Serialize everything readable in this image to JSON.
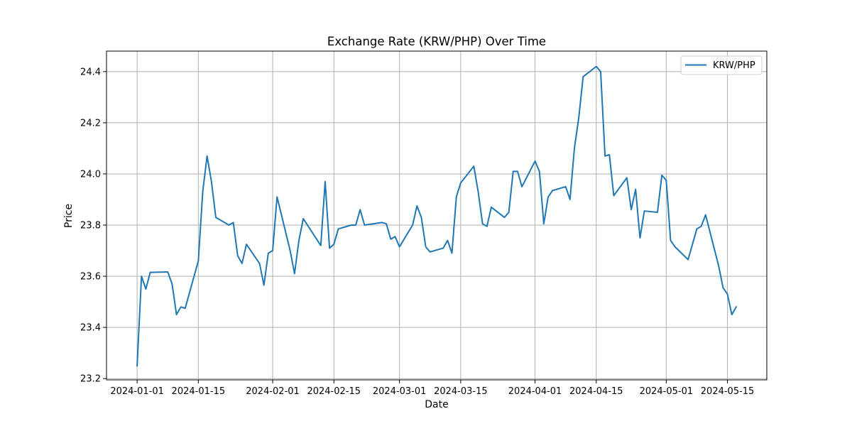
{
  "chart_data": {
    "type": "line",
    "title": "Exchange Rate (KRW/PHP) Over Time",
    "xlabel": "Date",
    "ylabel": "Price",
    "ylim": [
      23.195,
      24.48
    ],
    "xlim": [
      "2023-12-25",
      "2024-05-24"
    ],
    "grid": true,
    "legend_position": "top-right",
    "x_ticks": [
      "2024-01-01",
      "2024-01-15",
      "2024-02-01",
      "2024-02-15",
      "2024-03-01",
      "2024-03-15",
      "2024-04-01",
      "2024-04-15",
      "2024-05-01",
      "2024-05-15"
    ],
    "y_ticks": [
      23.2,
      23.4,
      23.6,
      23.8,
      24.0,
      24.2,
      24.4
    ],
    "y_tick_labels": [
      "23.2",
      "23.4",
      "23.6",
      "23.8",
      "24.0",
      "24.2",
      "24.4"
    ],
    "series": [
      {
        "name": "KRW/PHP",
        "color": "#1f77b4",
        "x": [
          "2024-01-01",
          "2024-01-02",
          "2024-01-03",
          "2024-01-04",
          "2024-01-08",
          "2024-01-09",
          "2024-01-10",
          "2024-01-11",
          "2024-01-12",
          "2024-01-15",
          "2024-01-16",
          "2024-01-17",
          "2024-01-18",
          "2024-01-19",
          "2024-01-22",
          "2024-01-23",
          "2024-01-24",
          "2024-01-25",
          "2024-01-26",
          "2024-01-29",
          "2024-01-30",
          "2024-01-31",
          "2024-02-01",
          "2024-02-02",
          "2024-02-05",
          "2024-02-06",
          "2024-02-07",
          "2024-02-08",
          "2024-02-12",
          "2024-02-13",
          "2024-02-14",
          "2024-02-15",
          "2024-02-16",
          "2024-02-19",
          "2024-02-20",
          "2024-02-21",
          "2024-02-22",
          "2024-02-26",
          "2024-02-27",
          "2024-02-28",
          "2024-02-29",
          "2024-03-01",
          "2024-03-04",
          "2024-03-05",
          "2024-03-06",
          "2024-03-07",
          "2024-03-08",
          "2024-03-11",
          "2024-03-12",
          "2024-03-13",
          "2024-03-14",
          "2024-03-15",
          "2024-03-18",
          "2024-03-19",
          "2024-03-20",
          "2024-03-21",
          "2024-03-22",
          "2024-03-25",
          "2024-03-26",
          "2024-03-27",
          "2024-03-28",
          "2024-03-29",
          "2024-04-01",
          "2024-04-02",
          "2024-04-03",
          "2024-04-04",
          "2024-04-05",
          "2024-04-08",
          "2024-04-09",
          "2024-04-10",
          "2024-04-11",
          "2024-04-12",
          "2024-04-15",
          "2024-04-16",
          "2024-04-17",
          "2024-04-18",
          "2024-04-19",
          "2024-04-22",
          "2024-04-23",
          "2024-04-24",
          "2024-04-25",
          "2024-04-26",
          "2024-04-29",
          "2024-04-30",
          "2024-05-01",
          "2024-05-02",
          "2024-05-03",
          "2024-05-06",
          "2024-05-07",
          "2024-05-08",
          "2024-05-09",
          "2024-05-10",
          "2024-05-13",
          "2024-05-14",
          "2024-05-15",
          "2024-05-16",
          "2024-05-17"
        ],
        "y": [
          23.25,
          23.6,
          23.55,
          23.615,
          23.617,
          23.57,
          23.45,
          23.48,
          23.475,
          23.66,
          23.93,
          24.07,
          23.97,
          23.83,
          23.8,
          23.81,
          23.68,
          23.65,
          23.725,
          23.65,
          23.565,
          23.69,
          23.7,
          23.91,
          23.7,
          23.61,
          23.74,
          23.825,
          23.72,
          23.97,
          23.71,
          23.725,
          23.785,
          23.8,
          23.8,
          23.86,
          23.8,
          23.81,
          23.805,
          23.745,
          23.755,
          23.715,
          23.8,
          23.875,
          23.83,
          23.715,
          23.695,
          23.71,
          23.74,
          23.69,
          23.91,
          23.965,
          24.03,
          23.93,
          23.805,
          23.795,
          23.87,
          23.83,
          23.85,
          24.01,
          24.01,
          23.95,
          24.05,
          24.01,
          23.805,
          23.91,
          23.935,
          23.95,
          23.9,
          24.1,
          24.22,
          24.38,
          24.42,
          24.4,
          24.07,
          24.075,
          23.915,
          23.985,
          23.86,
          23.94,
          23.75,
          23.855,
          23.85,
          23.995,
          23.975,
          23.74,
          23.715,
          23.665,
          23.725,
          23.785,
          23.795,
          23.84,
          23.64,
          23.555,
          23.53,
          23.45,
          23.48
        ]
      }
    ]
  }
}
